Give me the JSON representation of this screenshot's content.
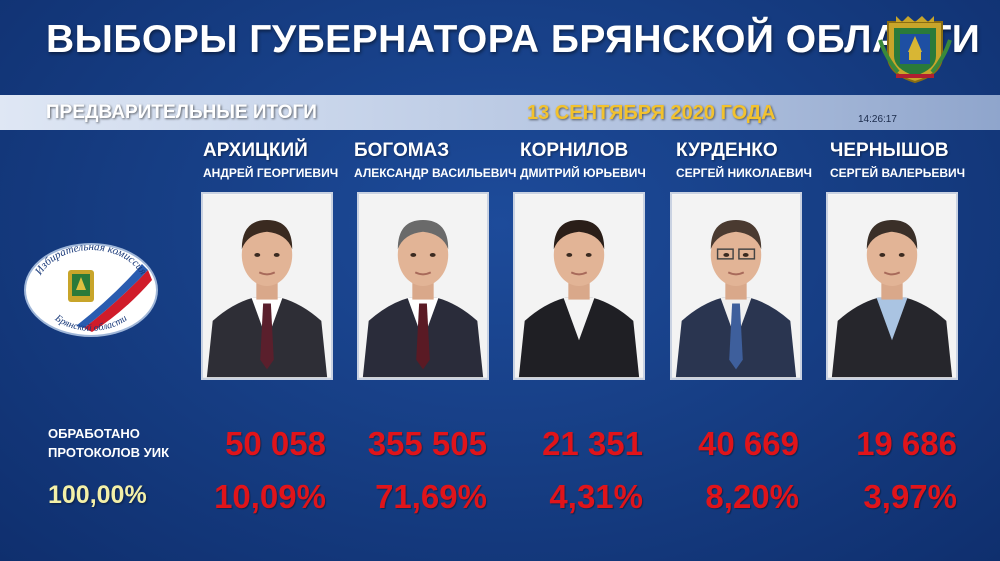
{
  "header": {
    "title": "ВЫБОРЫ ГУБЕРНАТОРА БРЯНСКОЙ ОБЛАСТИ",
    "subtitle": "ПРЕДВАРИТЕЛЬНЫЕ ИТОГИ",
    "date": "13 СЕНТЯБРЯ 2020 ГОДА",
    "time": "14:26:17"
  },
  "cik_logo": {
    "text_top": "Избирательная комиссия",
    "text_bottom": "Брянской области"
  },
  "stats": {
    "processed_label_line1": "ОБРАБОТАНО",
    "processed_label_line2": "ПРОТОКОЛОВ УИК",
    "processed_percent": "100,00%"
  },
  "candidates": [
    {
      "surname": "АРХИЦКИЙ",
      "given": "АНДРЕЙ ГЕОРГИЕВИЧ",
      "votes": "50 058",
      "percent": "10,09%",
      "tie": "#5a1f2c",
      "shirt": "#ffffff"
    },
    {
      "surname": "БОГОМАЗ",
      "given": "АЛЕКСАНДР ВАСИЛЬЕВИЧ",
      "votes": "355 505",
      "percent": "71,69%",
      "tie": "#5a1a24",
      "shirt": "#ffffff"
    },
    {
      "surname": "КОРНИЛОВ",
      "given": "ДМИТРИЙ ЮРЬЕВИЧ",
      "votes": "21 351",
      "percent": "4,31%",
      "tie": "",
      "shirt": "#f4f4f4"
    },
    {
      "surname": "КУРДЕНКО",
      "given": "СЕРГЕЙ НИКОЛАЕВИЧ",
      "votes": "40 669",
      "percent": "8,20%",
      "tie": "#3e5f9c",
      "shirt": "#f0f0f0"
    },
    {
      "surname": "ЧЕРНЫШОВ",
      "given": "СЕРГЕЙ ВАЛЕРЬЕВИЧ",
      "votes": "19 686",
      "percent": "3,97%",
      "tie": "",
      "shirt": "#aac4e2"
    }
  ],
  "colors": {
    "background": "#173f86",
    "result_red": "#e0141a",
    "date_gold": "#f2c22e",
    "percent_yellow": "#f3f0a8"
  }
}
